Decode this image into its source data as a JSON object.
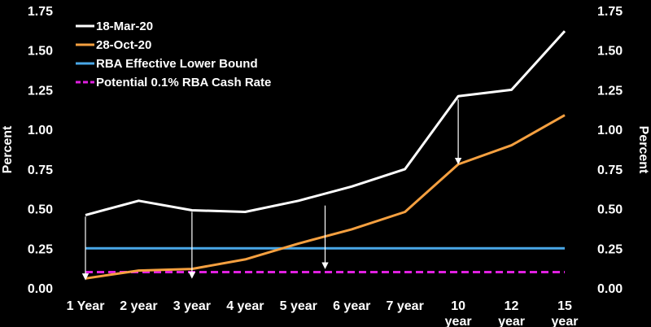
{
  "chart_data": {
    "type": "line",
    "categories": [
      "1 Year",
      "2 year",
      "3 year",
      "4 year",
      "5 year",
      "6 year",
      "7 year",
      "10 year",
      "12 year",
      "15 year"
    ],
    "ylabel": "Percent",
    "ylabel_right": "Percent",
    "ylim": [
      0,
      1.75
    ],
    "yticks": [
      "0.00",
      "0.25",
      "0.50",
      "0.75",
      "1.00",
      "1.25",
      "1.50",
      "1.75"
    ],
    "grid": false,
    "legend_position": "top-left",
    "series": [
      {
        "name": "18-Mar-20",
        "color": "#ffffff",
        "style": "solid",
        "values": [
          0.46,
          0.55,
          0.49,
          0.48,
          0.55,
          0.64,
          0.75,
          1.21,
          1.25,
          1.62
        ]
      },
      {
        "name": "28-Oct-20",
        "color": "#f5a040",
        "style": "solid",
        "values": [
          0.06,
          0.11,
          0.12,
          0.18,
          0.28,
          0.37,
          0.48,
          0.78,
          0.9,
          1.09
        ]
      },
      {
        "name": "RBA Effective Lower Bound",
        "color": "#4aa8e8",
        "style": "solid",
        "values": [
          0.25,
          0.25,
          0.25,
          0.25,
          0.25,
          0.25,
          0.25,
          0.25,
          0.25,
          0.25
        ]
      },
      {
        "name": "Potential 0.1% RBA Cash Rate",
        "color": "#e020e0",
        "style": "dashed",
        "values": [
          0.1,
          0.1,
          0.1,
          0.1,
          0.1,
          0.1,
          0.1,
          0.1,
          0.1,
          0.1
        ]
      }
    ],
    "annotations": [
      {
        "type": "arrow",
        "x_index": 0,
        "from": 0.45,
        "to": 0.07
      },
      {
        "type": "arrow",
        "x_index": 2,
        "from": 0.48,
        "to": 0.08
      },
      {
        "type": "arrow",
        "x_index": 4.5,
        "from": 0.52,
        "to": 0.14
      },
      {
        "type": "arrow",
        "x_index": 7,
        "from": 1.19,
        "to": 0.8
      }
    ]
  }
}
